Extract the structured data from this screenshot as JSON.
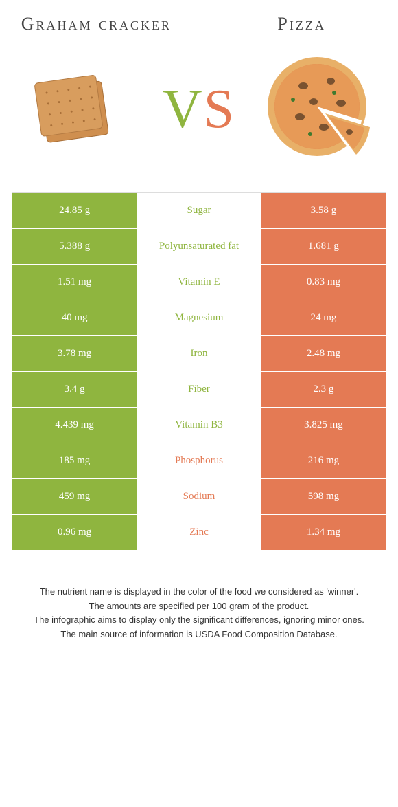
{
  "colors": {
    "left": "#8fb53f",
    "right": "#e47a54",
    "bg": "#ffffff",
    "text": "#444444"
  },
  "header": {
    "left_title": "Graham cracker",
    "right_title": "Pizza",
    "vs_v": "V",
    "vs_s": "S"
  },
  "images": {
    "left_alt": "graham-cracker",
    "right_alt": "pizza"
  },
  "comparison": {
    "rows": [
      {
        "left": "24.85 g",
        "label": "Sugar",
        "right": "3.58 g",
        "winner": "left"
      },
      {
        "left": "5.388 g",
        "label": "Polyunsaturated fat",
        "right": "1.681 g",
        "winner": "left"
      },
      {
        "left": "1.51 mg",
        "label": "Vitamin E",
        "right": "0.83 mg",
        "winner": "left"
      },
      {
        "left": "40 mg",
        "label": "Magnesium",
        "right": "24 mg",
        "winner": "left"
      },
      {
        "left": "3.78 mg",
        "label": "Iron",
        "right": "2.48 mg",
        "winner": "left"
      },
      {
        "left": "3.4 g",
        "label": "Fiber",
        "right": "2.3 g",
        "winner": "left"
      },
      {
        "left": "4.439 mg",
        "label": "Vitamin B3",
        "right": "3.825 mg",
        "winner": "left"
      },
      {
        "left": "185 mg",
        "label": "Phosphorus",
        "right": "216 mg",
        "winner": "right"
      },
      {
        "left": "459 mg",
        "label": "Sodium",
        "right": "598 mg",
        "winner": "right"
      },
      {
        "left": "0.96 mg",
        "label": "Zinc",
        "right": "1.34 mg",
        "winner": "right"
      }
    ]
  },
  "footer": {
    "line1": "The nutrient name is displayed in the color of the food we considered as 'winner'.",
    "line2": "The amounts are specified per 100 gram of the product.",
    "line3": "The infographic aims to display only the significant differences, ignoring minor ones.",
    "line4": "The main source of information is USDA Food Composition Database."
  }
}
